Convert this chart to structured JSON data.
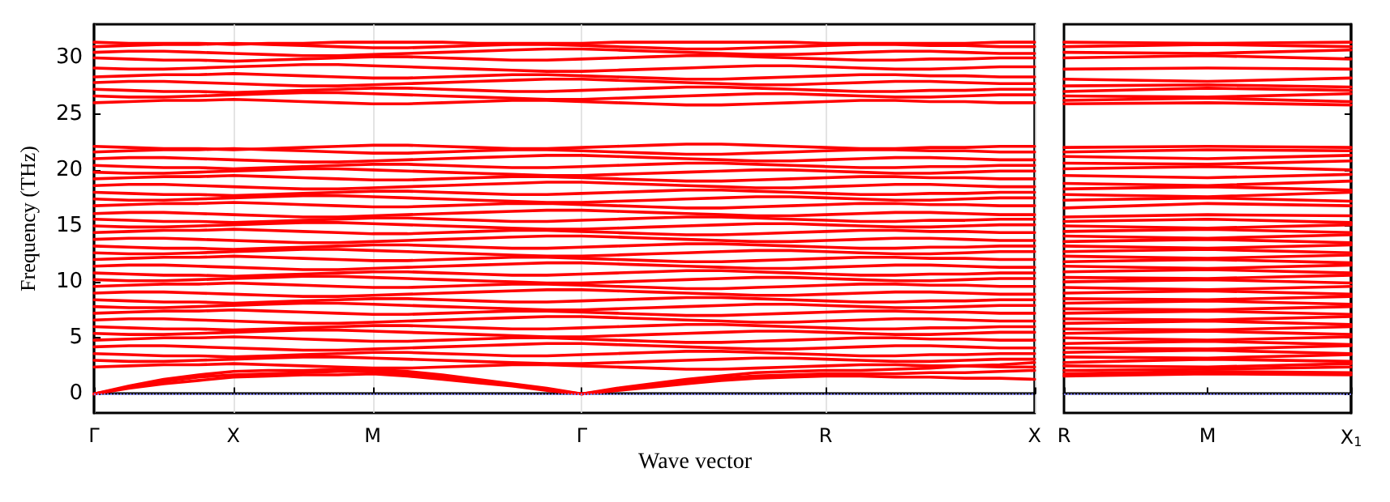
{
  "chart_data": [
    {
      "type": "line",
      "xlabel": "Wave vector",
      "ylabel": "Frequency (THz)",
      "color": "#ff0000",
      "grid": "x",
      "line_style": "solid",
      "categories": [
        "Γ",
        null,
        null,
        null,
        "X",
        null,
        null,
        null,
        "M",
        null,
        null,
        null,
        null,
        null,
        "Γ",
        null,
        null,
        null,
        null,
        null,
        null,
        "R",
        null,
        null,
        null,
        null,
        null,
        "X"
      ],
      "ylim": [
        -1.7,
        33
      ],
      "yticks": [
        0,
        5,
        10,
        15,
        20,
        25,
        30
      ],
      "ref_lines": [
        {
          "axis": "y",
          "value": 0,
          "color": "#8080ff",
          "line_style": "dotted"
        }
      ],
      "series": [
        {
          "values": [
            0,
            0.5,
            0.9,
            1.2,
            1.5,
            1.6,
            1.7,
            1.7,
            1.8,
            1.6,
            1.3,
            1.0,
            0.7,
            0.3,
            0,
            0.3,
            0.6,
            0.9,
            1.2,
            1.4,
            1.5,
            1.6,
            1.6,
            1.5,
            1.5,
            1.4,
            1.4,
            1.3
          ]
        },
        {
          "values": [
            0,
            0.6,
            1.1,
            1.5,
            1.7,
            1.8,
            1.9,
            2.0,
            2.0,
            1.8,
            1.5,
            1.1,
            0.8,
            0.4,
            0,
            0.4,
            0.7,
            1.1,
            1.4,
            1.6,
            1.7,
            1.8,
            1.8,
            1.8,
            1.9,
            1.9,
            2.0,
            2.1
          ]
        },
        {
          "values": [
            0,
            0.7,
            1.3,
            1.7,
            2.0,
            2.1,
            2.1,
            2.2,
            2.2,
            2.0,
            1.7,
            1.3,
            0.9,
            0.5,
            0,
            0.5,
            0.9,
            1.3,
            1.6,
            1.9,
            2.0,
            2.1,
            2.1,
            2.2,
            2.3,
            2.5,
            2.6,
            2.8
          ]
        },
        {
          "values": [
            2.4,
            2.5,
            2.6,
            2.6,
            2.7,
            2.6,
            2.5,
            2.4,
            2.3,
            2.3,
            2.4,
            2.5,
            2.6,
            2.6,
            2.5,
            2.4,
            2.3,
            2.2,
            2.2,
            2.3,
            2.4,
            2.5,
            2.6,
            2.6,
            2.5,
            2.5,
            2.4,
            2.4
          ]
        },
        {
          "values": [
            3.0,
            2.9,
            2.9,
            3.0,
            3.1,
            3.2,
            3.3,
            3.3,
            3.2,
            3.1,
            3.0,
            2.9,
            2.8,
            2.7,
            2.7,
            2.8,
            2.9,
            3.0,
            3.1,
            3.2,
            3.2,
            3.1,
            3.0,
            2.9,
            2.9,
            3.0,
            3.1,
            3.1
          ]
        },
        {
          "values": [
            3.6,
            3.5,
            3.4,
            3.4,
            3.3,
            3.4,
            3.5,
            3.6,
            3.7,
            3.7,
            3.6,
            3.5,
            3.4,
            3.4,
            3.5,
            3.6,
            3.7,
            3.8,
            3.8,
            3.7,
            3.6,
            3.5,
            3.4,
            3.4,
            3.5,
            3.5,
            3.6,
            3.6
          ]
        },
        {
          "values": [
            4.2,
            4.3,
            4.3,
            4.2,
            4.1,
            4.0,
            3.9,
            3.9,
            4.0,
            4.1,
            4.2,
            4.3,
            4.4,
            4.5,
            4.5,
            4.4,
            4.3,
            4.2,
            4.1,
            4.0,
            4.0,
            4.1,
            4.2,
            4.3,
            4.3,
            4.2,
            4.1,
            4.1
          ]
        },
        {
          "values": [
            4.8,
            4.9,
            5.0,
            5.0,
            5.1,
            5.0,
            4.9,
            4.8,
            4.7,
            4.7,
            4.8,
            4.9,
            5.0,
            5.0,
            4.9,
            4.8,
            4.7,
            4.6,
            4.6,
            4.7,
            4.8,
            4.9,
            5.0,
            5.0,
            4.9,
            4.9,
            4.8,
            4.8
          ]
        },
        {
          "values": [
            5.4,
            5.3,
            5.3,
            5.4,
            5.5,
            5.6,
            5.7,
            5.7,
            5.6,
            5.5,
            5.4,
            5.3,
            5.2,
            5.1,
            5.1,
            5.2,
            5.3,
            5.4,
            5.5,
            5.6,
            5.6,
            5.5,
            5.4,
            5.3,
            5.3,
            5.4,
            5.5,
            5.5
          ]
        },
        {
          "values": [
            6.0,
            5.9,
            5.8,
            5.8,
            5.7,
            5.8,
            5.9,
            6.0,
            6.1,
            6.1,
            6.0,
            5.9,
            5.8,
            5.8,
            5.9,
            6.0,
            6.1,
            6.2,
            6.2,
            6.1,
            6.0,
            5.9,
            5.8,
            5.8,
            5.9,
            5.9,
            6.0,
            6.0
          ]
        },
        {
          "values": [
            6.6,
            6.7,
            6.7,
            6.6,
            6.5,
            6.4,
            6.3,
            6.3,
            6.4,
            6.5,
            6.6,
            6.7,
            6.8,
            6.9,
            6.9,
            6.8,
            6.7,
            6.6,
            6.5,
            6.4,
            6.4,
            6.5,
            6.6,
            6.7,
            6.7,
            6.6,
            6.5,
            6.5
          ]
        },
        {
          "values": [
            7.2,
            7.3,
            7.4,
            7.4,
            7.5,
            7.4,
            7.3,
            7.2,
            7.1,
            7.1,
            7.2,
            7.3,
            7.4,
            7.4,
            7.3,
            7.2,
            7.1,
            7.0,
            7.0,
            7.1,
            7.2,
            7.3,
            7.4,
            7.4,
            7.3,
            7.3,
            7.2,
            7.2
          ]
        },
        {
          "values": [
            7.8,
            7.7,
            7.7,
            7.8,
            7.9,
            8.0,
            8.1,
            8.1,
            8.0,
            7.9,
            7.8,
            7.7,
            7.6,
            7.5,
            7.5,
            7.6,
            7.7,
            7.8,
            7.9,
            8.0,
            8.0,
            7.9,
            7.8,
            7.7,
            7.7,
            7.8,
            7.9,
            7.9
          ]
        },
        {
          "values": [
            8.4,
            8.3,
            8.2,
            8.2,
            8.1,
            8.2,
            8.3,
            8.4,
            8.5,
            8.5,
            8.4,
            8.3,
            8.2,
            8.2,
            8.3,
            8.4,
            8.5,
            8.6,
            8.6,
            8.5,
            8.4,
            8.3,
            8.2,
            8.2,
            8.3,
            8.3,
            8.4,
            8.4
          ]
        },
        {
          "values": [
            9.0,
            9.1,
            9.1,
            9.0,
            8.9,
            8.8,
            8.7,
            8.7,
            8.8,
            8.9,
            9.0,
            9.1,
            9.2,
            9.3,
            9.3,
            9.2,
            9.1,
            9.0,
            8.9,
            8.8,
            8.8,
            8.9,
            9.0,
            9.1,
            9.1,
            9.0,
            8.9,
            8.9
          ]
        },
        {
          "values": [
            9.6,
            9.7,
            9.8,
            9.8,
            9.9,
            9.8,
            9.7,
            9.6,
            9.5,
            9.5,
            9.6,
            9.7,
            9.8,
            9.8,
            9.7,
            9.6,
            9.5,
            9.4,
            9.4,
            9.5,
            9.6,
            9.7,
            9.8,
            9.8,
            9.7,
            9.7,
            9.6,
            9.6
          ]
        },
        {
          "values": [
            10.2,
            10.1,
            10.1,
            10.2,
            10.3,
            10.4,
            10.5,
            10.5,
            10.4,
            10.3,
            10.2,
            10.1,
            10.0,
            9.9,
            9.9,
            10.0,
            10.1,
            10.2,
            10.3,
            10.4,
            10.4,
            10.3,
            10.2,
            10.1,
            10.1,
            10.2,
            10.3,
            10.3
          ]
        },
        {
          "values": [
            10.8,
            10.7,
            10.6,
            10.6,
            10.5,
            10.6,
            10.7,
            10.8,
            10.9,
            10.9,
            10.8,
            10.7,
            10.6,
            10.6,
            10.7,
            10.8,
            10.9,
            11.0,
            11.0,
            10.9,
            10.8,
            10.7,
            10.6,
            10.6,
            10.7,
            10.7,
            10.8,
            10.8
          ]
        },
        {
          "values": [
            11.4,
            11.5,
            11.5,
            11.4,
            11.3,
            11.2,
            11.1,
            11.1,
            11.2,
            11.3,
            11.4,
            11.5,
            11.6,
            11.7,
            11.7,
            11.6,
            11.5,
            11.4,
            11.3,
            11.2,
            11.2,
            11.3,
            11.4,
            11.5,
            11.5,
            11.4,
            11.3,
            11.3
          ]
        },
        {
          "values": [
            12.0,
            12.1,
            12.2,
            12.2,
            12.3,
            12.2,
            12.1,
            12.0,
            11.9,
            11.9,
            12.0,
            12.1,
            12.2,
            12.2,
            12.1,
            12.0,
            11.9,
            11.8,
            11.8,
            11.9,
            12.0,
            12.1,
            12.2,
            12.2,
            12.1,
            12.1,
            12.0,
            12.0
          ]
        },
        {
          "values": [
            12.6,
            12.5,
            12.5,
            12.6,
            12.7,
            12.8,
            12.9,
            12.9,
            12.8,
            12.7,
            12.6,
            12.5,
            12.4,
            12.3,
            12.3,
            12.4,
            12.5,
            12.6,
            12.7,
            12.8,
            12.8,
            12.7,
            12.6,
            12.5,
            12.5,
            12.6,
            12.7,
            12.7
          ]
        },
        {
          "values": [
            13.2,
            13.1,
            13.0,
            13.0,
            12.9,
            13.0,
            13.1,
            13.2,
            13.3,
            13.3,
            13.2,
            13.1,
            13.0,
            13.0,
            13.1,
            13.2,
            13.3,
            13.4,
            13.4,
            13.3,
            13.2,
            13.1,
            13.0,
            13.0,
            13.1,
            13.1,
            13.2,
            13.2
          ]
        },
        {
          "values": [
            13.8,
            13.9,
            13.9,
            13.8,
            13.7,
            13.6,
            13.5,
            13.5,
            13.6,
            13.7,
            13.8,
            13.9,
            14.0,
            14.1,
            14.1,
            14.0,
            13.9,
            13.8,
            13.7,
            13.6,
            13.6,
            13.7,
            13.8,
            13.9,
            13.9,
            13.8,
            13.7,
            13.7
          ]
        },
        {
          "values": [
            14.4,
            14.5,
            14.6,
            14.6,
            14.7,
            14.6,
            14.5,
            14.4,
            14.3,
            14.3,
            14.4,
            14.5,
            14.6,
            14.6,
            14.5,
            14.4,
            14.3,
            14.2,
            14.2,
            14.3,
            14.4,
            14.5,
            14.6,
            14.6,
            14.5,
            14.5,
            14.4,
            14.4
          ]
        },
        {
          "values": [
            15.0,
            14.9,
            14.9,
            15.0,
            15.1,
            15.2,
            15.3,
            15.3,
            15.2,
            15.1,
            15.0,
            14.9,
            14.8,
            14.7,
            14.7,
            14.8,
            14.9,
            15.0,
            15.1,
            15.2,
            15.2,
            15.1,
            15.0,
            14.9,
            14.9,
            15.0,
            15.1,
            15.1
          ]
        },
        {
          "values": [
            15.6,
            15.5,
            15.4,
            15.4,
            15.3,
            15.4,
            15.5,
            15.6,
            15.7,
            15.7,
            15.6,
            15.5,
            15.4,
            15.4,
            15.5,
            15.6,
            15.7,
            15.8,
            15.8,
            15.7,
            15.6,
            15.5,
            15.4,
            15.4,
            15.5,
            15.5,
            15.6,
            15.6
          ]
        },
        {
          "values": [
            16.1,
            16.2,
            16.2,
            16.1,
            16.0,
            15.9,
            15.8,
            15.8,
            15.9,
            16.0,
            16.1,
            16.2,
            16.3,
            16.4,
            16.4,
            16.3,
            16.2,
            16.1,
            16.0,
            15.9,
            15.9,
            16.0,
            16.1,
            16.2,
            16.2,
            16.1,
            16.0,
            16.0
          ]
        },
        {
          "values": [
            16.8,
            16.9,
            17.0,
            17.0,
            17.1,
            17.0,
            16.9,
            16.8,
            16.7,
            16.7,
            16.8,
            16.9,
            17.0,
            17.0,
            16.9,
            16.8,
            16.7,
            16.6,
            16.6,
            16.7,
            16.8,
            16.9,
            17.0,
            17.0,
            16.9,
            16.9,
            16.8,
            16.8
          ]
        },
        {
          "values": [
            17.4,
            17.3,
            17.3,
            17.4,
            17.5,
            17.6,
            17.7,
            17.7,
            17.6,
            17.5,
            17.4,
            17.3,
            17.2,
            17.1,
            17.1,
            17.2,
            17.3,
            17.4,
            17.5,
            17.6,
            17.6,
            17.5,
            17.4,
            17.3,
            17.3,
            17.4,
            17.5,
            17.5
          ]
        },
        {
          "values": [
            18.0,
            17.9,
            17.8,
            17.8,
            17.7,
            17.8,
            17.9,
            18.0,
            18.1,
            18.1,
            18.0,
            17.9,
            17.8,
            17.8,
            17.9,
            18.0,
            18.1,
            18.2,
            18.2,
            18.1,
            18.0,
            17.9,
            17.8,
            17.8,
            17.9,
            17.9,
            18.0,
            18.0
          ]
        },
        {
          "values": [
            18.6,
            18.7,
            18.7,
            18.6,
            18.5,
            18.4,
            18.3,
            18.3,
            18.4,
            18.5,
            18.6,
            18.7,
            18.8,
            18.9,
            18.9,
            18.8,
            18.7,
            18.6,
            18.5,
            18.4,
            18.4,
            18.5,
            18.6,
            18.7,
            18.7,
            18.6,
            18.5,
            18.5
          ]
        },
        {
          "values": [
            19.2,
            19.3,
            19.4,
            19.4,
            19.5,
            19.4,
            19.3,
            19.2,
            19.1,
            19.1,
            19.2,
            19.3,
            19.4,
            19.4,
            19.3,
            19.2,
            19.1,
            19.0,
            19.0,
            19.1,
            19.2,
            19.3,
            19.4,
            19.4,
            19.3,
            19.3,
            19.2,
            19.2
          ]
        },
        {
          "values": [
            19.8,
            19.7,
            19.7,
            19.8,
            19.9,
            20.0,
            20.1,
            20.1,
            20.0,
            19.9,
            19.8,
            19.7,
            19.6,
            19.5,
            19.5,
            19.6,
            19.7,
            19.8,
            19.9,
            20.0,
            20.0,
            19.9,
            19.8,
            19.7,
            19.7,
            19.8,
            19.9,
            19.9
          ]
        },
        {
          "values": [
            20.4,
            20.3,
            20.2,
            20.2,
            20.1,
            20.2,
            20.3,
            20.4,
            20.5,
            20.5,
            20.4,
            20.3,
            20.2,
            20.2,
            20.3,
            20.4,
            20.5,
            20.6,
            20.6,
            20.5,
            20.4,
            20.3,
            20.2,
            20.2,
            20.3,
            20.3,
            20.4,
            20.4
          ]
        },
        {
          "values": [
            21.0,
            21.1,
            21.1,
            21.0,
            20.9,
            20.8,
            20.7,
            20.7,
            20.8,
            20.9,
            21.0,
            21.1,
            21.2,
            21.3,
            21.3,
            21.2,
            21.1,
            21.0,
            20.9,
            20.8,
            20.8,
            20.9,
            21.0,
            21.1,
            21.1,
            21.0,
            20.9,
            20.9
          ]
        },
        {
          "values": [
            21.6,
            21.7,
            21.8,
            21.8,
            21.9,
            21.8,
            21.7,
            21.6,
            21.5,
            21.5,
            21.6,
            21.7,
            21.8,
            21.8,
            21.7,
            21.6,
            21.5,
            21.4,
            21.4,
            21.5,
            21.6,
            21.7,
            21.8,
            21.8,
            21.7,
            21.7,
            21.6,
            21.6
          ]
        },
        {
          "values": [
            22.1,
            22.0,
            21.9,
            21.9,
            21.8,
            21.9,
            22.0,
            22.1,
            22.2,
            22.2,
            22.1,
            22.0,
            21.9,
            21.9,
            22.0,
            22.1,
            22.2,
            22.3,
            22.3,
            22.2,
            22.1,
            22.0,
            21.9,
            21.9,
            22.0,
            22.0,
            22.1,
            22.1
          ]
        },
        {
          "values": [
            26.0,
            26.1,
            26.2,
            26.2,
            26.3,
            26.2,
            26.1,
            26.0,
            25.9,
            25.9,
            26.0,
            26.1,
            26.2,
            26.2,
            26.1,
            26.0,
            25.9,
            25.8,
            25.8,
            25.9,
            26.0,
            26.1,
            26.2,
            26.2,
            26.1,
            26.1,
            26.0,
            26.0
          ]
        },
        {
          "values": [
            26.6,
            26.5,
            26.5,
            26.6,
            26.7,
            26.8,
            26.9,
            26.9,
            26.8,
            26.7,
            26.6,
            26.5,
            26.4,
            26.3,
            26.3,
            26.4,
            26.5,
            26.6,
            26.7,
            26.8,
            26.8,
            26.7,
            26.6,
            26.5,
            26.5,
            26.6,
            26.7,
            26.7
          ]
        },
        {
          "values": [
            27.2,
            27.1,
            27.0,
            27.0,
            26.9,
            27.0,
            27.1,
            27.2,
            27.3,
            27.3,
            27.2,
            27.1,
            27.0,
            27.0,
            27.1,
            27.2,
            27.3,
            27.4,
            27.4,
            27.3,
            27.2,
            27.1,
            27.0,
            27.0,
            27.1,
            27.1,
            27.2,
            27.2
          ]
        },
        {
          "values": [
            27.8,
            27.9,
            27.9,
            27.8,
            27.7,
            27.6,
            27.5,
            27.5,
            27.6,
            27.7,
            27.8,
            27.9,
            28.0,
            28.1,
            28.1,
            28.0,
            27.9,
            27.8,
            27.7,
            27.6,
            27.6,
            27.7,
            27.8,
            27.9,
            27.9,
            27.8,
            27.7,
            27.7
          ]
        },
        {
          "values": [
            28.3,
            28.4,
            28.5,
            28.5,
            28.6,
            28.5,
            28.4,
            28.3,
            28.2,
            28.2,
            28.3,
            28.4,
            28.5,
            28.5,
            28.4,
            28.3,
            28.2,
            28.1,
            28.1,
            28.2,
            28.3,
            28.4,
            28.5,
            28.5,
            28.4,
            28.4,
            28.3,
            28.3
          ]
        },
        {
          "values": [
            29.1,
            29.0,
            29.0,
            29.1,
            29.2,
            29.3,
            29.4,
            29.4,
            29.3,
            29.2,
            29.1,
            29.0,
            28.9,
            28.8,
            28.8,
            28.9,
            29.0,
            29.1,
            29.2,
            29.3,
            29.3,
            29.2,
            29.1,
            29.0,
            29.0,
            29.1,
            29.2,
            29.2
          ]
        },
        {
          "values": [
            30.0,
            29.9,
            29.8,
            29.8,
            29.7,
            29.8,
            29.9,
            30.0,
            30.1,
            30.1,
            30.0,
            29.9,
            29.8,
            29.8,
            29.9,
            30.0,
            30.1,
            30.2,
            30.2,
            30.1,
            30.0,
            29.9,
            29.8,
            29.8,
            29.9,
            29.9,
            30.0,
            30.0
          ]
        },
        {
          "values": [
            30.5,
            30.6,
            30.6,
            30.5,
            30.4,
            30.3,
            30.2,
            30.2,
            30.3,
            30.4,
            30.5,
            30.6,
            30.7,
            30.8,
            30.8,
            30.7,
            30.6,
            30.5,
            30.4,
            30.3,
            30.3,
            30.4,
            30.5,
            30.6,
            30.6,
            30.5,
            30.4,
            30.4
          ]
        },
        {
          "values": [
            31.0,
            31.1,
            31.2,
            31.2,
            31.3,
            31.2,
            31.1,
            31.0,
            30.9,
            30.9,
            31.0,
            31.1,
            31.2,
            31.2,
            31.1,
            31.0,
            30.9,
            30.8,
            30.8,
            30.9,
            31.0,
            31.1,
            31.2,
            31.2,
            31.1,
            31.1,
            31.0,
            31.0
          ]
        },
        {
          "values": [
            31.4,
            31.3,
            31.3,
            31.3,
            31.2,
            31.3,
            31.3,
            31.4,
            31.4,
            31.4,
            31.4,
            31.3,
            31.3,
            31.3,
            31.3,
            31.4,
            31.4,
            31.4,
            31.4,
            31.4,
            31.4,
            31.3,
            31.3,
            31.3,
            31.3,
            31.3,
            31.4,
            31.4
          ]
        }
      ]
    },
    {
      "type": "line",
      "color": "#ff0000",
      "line_style": "solid",
      "tick_labels": "x",
      "categories": [
        "R",
        "M",
        "X$_{1}$"
      ],
      "ylim": [
        -1.7,
        33
      ],
      "yticks": [
        0,
        5,
        10,
        15,
        20,
        25,
        30
      ],
      "ref_lines": [
        {
          "axis": "y",
          "value": 0,
          "color": "#8080ff",
          "line_style": "dotted"
        }
      ],
      "series": [
        {
          "values": [
            1.6,
            1.8,
            1.7
          ]
        },
        {
          "values": [
            1.8,
            2.0,
            1.9
          ]
        },
        {
          "values": [
            2.1,
            2.2,
            2.4
          ]
        },
        {
          "values": [
            2.5,
            2.4,
            2.7
          ]
        },
        {
          "values": [
            2.8,
            3.1,
            2.9
          ]
        },
        {
          "values": [
            3.3,
            3.2,
            3.5
          ]
        },
        {
          "values": [
            3.7,
            3.9,
            3.6
          ]
        },
        {
          "values": [
            4.1,
            4.0,
            4.3
          ]
        },
        {
          "values": [
            4.5,
            4.7,
            4.4
          ]
        },
        {
          "values": [
            5.0,
            4.8,
            5.1
          ]
        },
        {
          "values": [
            5.4,
            5.6,
            5.3
          ]
        },
        {
          "values": [
            5.8,
            5.7,
            6.0
          ]
        },
        {
          "values": [
            6.3,
            6.5,
            6.2
          ]
        },
        {
          "values": [
            6.7,
            6.6,
            6.9
          ]
        },
        {
          "values": [
            7.2,
            7.4,
            7.1
          ]
        },
        {
          "values": [
            7.6,
            7.5,
            7.8
          ]
        },
        {
          "values": [
            8.1,
            8.3,
            8.0
          ]
        },
        {
          "values": [
            8.5,
            8.4,
            8.7
          ]
        },
        {
          "values": [
            9.0,
            9.2,
            8.9
          ]
        },
        {
          "values": [
            9.5,
            9.3,
            9.6
          ]
        },
        {
          "values": [
            10.0,
            10.2,
            9.9
          ]
        },
        {
          "values": [
            10.4,
            10.3,
            10.6
          ]
        },
        {
          "values": [
            10.9,
            11.1,
            10.8
          ]
        },
        {
          "values": [
            11.4,
            11.2,
            11.5
          ]
        },
        {
          "values": [
            11.8,
            12.0,
            11.7
          ]
        },
        {
          "values": [
            12.3,
            12.1,
            12.4
          ]
        },
        {
          "values": [
            12.7,
            12.9,
            12.6
          ]
        },
        {
          "values": [
            13.2,
            13.0,
            13.3
          ]
        },
        {
          "values": [
            13.6,
            13.8,
            13.5
          ]
        },
        {
          "values": [
            14.1,
            13.9,
            14.2
          ]
        },
        {
          "values": [
            14.5,
            14.7,
            14.4
          ]
        },
        {
          "values": [
            15.0,
            14.8,
            15.1
          ]
        },
        {
          "values": [
            15.4,
            15.6,
            15.3
          ]
        },
        {
          "values": [
            15.8,
            16.0,
            15.9
          ]
        },
        {
          "values": [
            16.6,
            17.0,
            16.8
          ]
        },
        {
          "values": [
            17.3,
            17.5,
            17.2
          ]
        },
        {
          "values": [
            17.8,
            17.6,
            18.0
          ]
        },
        {
          "values": [
            18.3,
            18.5,
            18.2
          ]
        },
        {
          "values": [
            18.8,
            18.6,
            19.0
          ]
        },
        {
          "values": [
            19.5,
            19.3,
            19.6
          ]
        },
        {
          "values": [
            20.1,
            20.3,
            20.0
          ]
        },
        {
          "values": [
            20.6,
            20.5,
            20.8
          ]
        },
        {
          "values": [
            21.2,
            21.0,
            21.3
          ]
        },
        {
          "values": [
            21.6,
            21.8,
            21.7
          ]
        },
        {
          "values": [
            22.0,
            22.1,
            22.0
          ]
        },
        {
          "values": [
            25.9,
            26.0,
            25.8
          ]
        },
        {
          "values": [
            26.2,
            26.4,
            26.1
          ]
        },
        {
          "values": [
            26.6,
            26.5,
            26.8
          ]
        },
        {
          "values": [
            27.0,
            27.3,
            27.1
          ]
        },
        {
          "values": [
            27.5,
            27.6,
            27.4
          ]
        },
        {
          "values": [
            28.1,
            27.9,
            28.2
          ]
        },
        {
          "values": [
            29.0,
            29.1,
            29.0
          ]
        },
        {
          "values": [
            30.0,
            30.2,
            29.9
          ]
        },
        {
          "values": [
            30.5,
            30.4,
            30.7
          ]
        },
        {
          "values": [
            31.0,
            31.2,
            31.0
          ]
        },
        {
          "values": [
            31.4,
            31.3,
            31.4
          ]
        }
      ]
    }
  ]
}
